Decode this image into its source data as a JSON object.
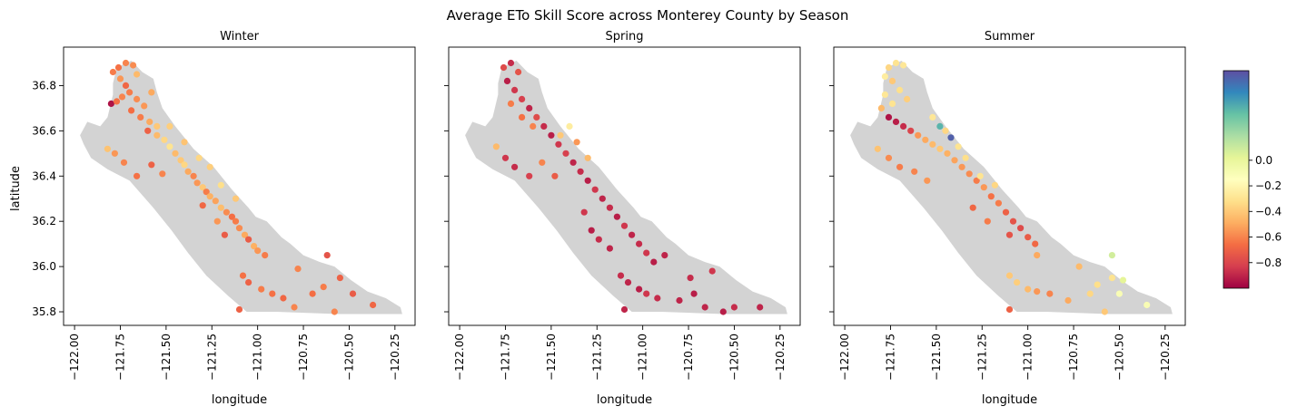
{
  "figure": {
    "title": "Average ETo Skill Score across Monterey County by Season"
  },
  "chart_data": {
    "type": "scatter",
    "xlabel": "longitude",
    "ylabel": "latitude",
    "xlim": [
      -122.06,
      -120.14
    ],
    "ylim": [
      35.74,
      36.97
    ],
    "x_ticks": [
      -122.0,
      -121.75,
      -121.5,
      -121.25,
      -121.0,
      -120.75,
      -120.5,
      -120.25
    ],
    "x_tick_labels": [
      "−122.00",
      "−121.75",
      "−121.50",
      "−121.25",
      "−121.00",
      "−120.75",
      "−120.50",
      "−120.25"
    ],
    "y_ticks": [
      35.8,
      36.0,
      36.2,
      36.4,
      36.6,
      36.8
    ],
    "y_tick_labels": [
      "35.8",
      "36.0",
      "36.2",
      "36.4",
      "36.6",
      "36.8"
    ],
    "county_fill": "#d3d3d3",
    "county_outline": [
      [
        -121.97,
        36.58
      ],
      [
        -121.93,
        36.64
      ],
      [
        -121.86,
        36.62
      ],
      [
        -121.82,
        36.66
      ],
      [
        -121.79,
        36.76
      ],
      [
        -121.79,
        36.81
      ],
      [
        -121.77,
        36.88
      ],
      [
        -121.69,
        36.91
      ],
      [
        -121.63,
        36.86
      ],
      [
        -121.57,
        36.83
      ],
      [
        -121.55,
        36.77
      ],
      [
        -121.52,
        36.7
      ],
      [
        -121.45,
        36.62
      ],
      [
        -121.35,
        36.52
      ],
      [
        -121.24,
        36.44
      ],
      [
        -121.14,
        36.34
      ],
      [
        -121.05,
        36.26
      ],
      [
        -121.01,
        36.22
      ],
      [
        -120.95,
        36.2
      ],
      [
        -120.87,
        36.13
      ],
      [
        -120.82,
        36.1
      ],
      [
        -120.75,
        36.05
      ],
      [
        -120.66,
        36.02
      ],
      [
        -120.58,
        36.0
      ],
      [
        -120.49,
        35.94
      ],
      [
        -120.4,
        35.89
      ],
      [
        -120.3,
        35.86
      ],
      [
        -120.22,
        35.82
      ],
      [
        -120.21,
        35.79
      ],
      [
        -120.56,
        35.79
      ],
      [
        -120.9,
        35.8
      ],
      [
        -121.06,
        35.8
      ],
      [
        -121.16,
        35.87
      ],
      [
        -121.28,
        35.96
      ],
      [
        -121.38,
        36.06
      ],
      [
        -121.47,
        36.16
      ],
      [
        -121.57,
        36.26
      ],
      [
        -121.7,
        36.38
      ],
      [
        -121.82,
        36.43
      ],
      [
        -121.91,
        36.48
      ],
      [
        -121.95,
        36.54
      ]
    ],
    "colorbar": {
      "colormap": "Spectral",
      "vmin": -1.0,
      "vmax": 0.7,
      "ticks": [
        0.0,
        -0.2,
        -0.4,
        -0.6,
        -0.8
      ],
      "tick_labels": [
        "0.0",
        "−0.2",
        "−0.4",
        "−0.6",
        "−0.8"
      ]
    },
    "panels": [
      {
        "title": "Winter",
        "points": [
          [
            -121.79,
            36.86,
            -0.62
          ],
          [
            -121.76,
            36.88,
            -0.65
          ],
          [
            -121.72,
            36.9,
            -0.6
          ],
          [
            -121.68,
            36.89,
            -0.58
          ],
          [
            -121.75,
            36.83,
            -0.55
          ],
          [
            -121.72,
            36.8,
            -0.68
          ],
          [
            -121.8,
            36.72,
            -0.95
          ],
          [
            -121.77,
            36.73,
            -0.65
          ],
          [
            -121.74,
            36.75,
            -0.6
          ],
          [
            -121.7,
            36.77,
            -0.62
          ],
          [
            -121.66,
            36.74,
            -0.58
          ],
          [
            -121.62,
            36.71,
            -0.55
          ],
          [
            -121.69,
            36.69,
            -0.66
          ],
          [
            -121.64,
            36.66,
            -0.62
          ],
          [
            -121.59,
            36.64,
            -0.5
          ],
          [
            -121.55,
            36.62,
            -0.4
          ],
          [
            -121.6,
            36.6,
            -0.7
          ],
          [
            -121.55,
            36.58,
            -0.45
          ],
          [
            -121.51,
            36.56,
            -0.35
          ],
          [
            -121.48,
            36.53,
            -0.3
          ],
          [
            -121.45,
            36.5,
            -0.45
          ],
          [
            -121.42,
            36.47,
            -0.4
          ],
          [
            -121.4,
            36.45,
            -0.35
          ],
          [
            -121.38,
            36.42,
            -0.5
          ],
          [
            -121.35,
            36.4,
            -0.6
          ],
          [
            -121.33,
            36.37,
            -0.55
          ],
          [
            -121.3,
            36.35,
            -0.4
          ],
          [
            -121.28,
            36.33,
            -0.62
          ],
          [
            -121.26,
            36.31,
            -0.48
          ],
          [
            -121.23,
            36.29,
            -0.52
          ],
          [
            -121.2,
            36.26,
            -0.44
          ],
          [
            -121.17,
            36.24,
            -0.58
          ],
          [
            -121.14,
            36.22,
            -0.66
          ],
          [
            -121.12,
            36.2,
            -0.62
          ],
          [
            -121.1,
            36.17,
            -0.58
          ],
          [
            -121.07,
            36.14,
            -0.5
          ],
          [
            -121.05,
            36.12,
            -0.72
          ],
          [
            -121.02,
            36.09,
            -0.48
          ],
          [
            -121.0,
            36.07,
            -0.55
          ],
          [
            -120.96,
            36.05,
            -0.62
          ],
          [
            -121.82,
            36.52,
            -0.42
          ],
          [
            -121.78,
            36.5,
            -0.55
          ],
          [
            -121.73,
            36.46,
            -0.6
          ],
          [
            -121.66,
            36.4,
            -0.65
          ],
          [
            -121.58,
            36.45,
            -0.7
          ],
          [
            -121.52,
            36.41,
            -0.6
          ],
          [
            -121.3,
            36.27,
            -0.68
          ],
          [
            -121.22,
            36.2,
            -0.55
          ],
          [
            -121.18,
            36.14,
            -0.72
          ],
          [
            -121.08,
            35.96,
            -0.65
          ],
          [
            -121.05,
            35.93,
            -0.7
          ],
          [
            -120.98,
            35.9,
            -0.62
          ],
          [
            -120.92,
            35.88,
            -0.65
          ],
          [
            -120.86,
            35.86,
            -0.68
          ],
          [
            -121.1,
            35.81,
            -0.7
          ],
          [
            -120.8,
            35.82,
            -0.6
          ],
          [
            -120.7,
            35.88,
            -0.66
          ],
          [
            -120.64,
            35.91,
            -0.62
          ],
          [
            -120.55,
            35.95,
            -0.7
          ],
          [
            -120.48,
            35.88,
            -0.72
          ],
          [
            -120.58,
            35.8,
            -0.6
          ],
          [
            -120.37,
            35.83,
            -0.68
          ],
          [
            -120.62,
            36.05,
            -0.75
          ],
          [
            -120.78,
            35.99,
            -0.6
          ],
          [
            -121.66,
            36.85,
            -0.45
          ],
          [
            -121.58,
            36.77,
            -0.5
          ],
          [
            -121.48,
            36.62,
            -0.38
          ],
          [
            -121.4,
            36.55,
            -0.42
          ],
          [
            -121.32,
            36.48,
            -0.35
          ],
          [
            -121.26,
            36.44,
            -0.38
          ],
          [
            -121.2,
            36.36,
            -0.32
          ],
          [
            -121.12,
            36.3,
            -0.4
          ]
        ]
      },
      {
        "title": "Spring",
        "points": [
          [
            -121.76,
            36.88,
            -0.78
          ],
          [
            -121.72,
            36.9,
            -0.88
          ],
          [
            -121.68,
            36.86,
            -0.75
          ],
          [
            -121.74,
            36.82,
            -0.92
          ],
          [
            -121.7,
            36.78,
            -0.85
          ],
          [
            -121.66,
            36.74,
            -0.82
          ],
          [
            -121.62,
            36.7,
            -0.9
          ],
          [
            -121.58,
            36.66,
            -0.78
          ],
          [
            -121.54,
            36.62,
            -0.88
          ],
          [
            -121.5,
            36.58,
            -0.92
          ],
          [
            -121.46,
            36.54,
            -0.85
          ],
          [
            -121.42,
            36.5,
            -0.82
          ],
          [
            -121.38,
            36.46,
            -0.9
          ],
          [
            -121.34,
            36.42,
            -0.88
          ],
          [
            -121.3,
            36.38,
            -0.92
          ],
          [
            -121.26,
            36.34,
            -0.85
          ],
          [
            -121.22,
            36.3,
            -0.9
          ],
          [
            -121.18,
            36.26,
            -0.88
          ],
          [
            -121.14,
            36.22,
            -0.92
          ],
          [
            -121.1,
            36.18,
            -0.85
          ],
          [
            -121.06,
            36.14,
            -0.9
          ],
          [
            -121.02,
            36.1,
            -0.88
          ],
          [
            -120.98,
            36.06,
            -0.85
          ],
          [
            -120.94,
            36.02,
            -0.92
          ],
          [
            -121.8,
            36.53,
            -0.45
          ],
          [
            -121.75,
            36.48,
            -0.85
          ],
          [
            -121.7,
            36.44,
            -0.88
          ],
          [
            -121.62,
            36.4,
            -0.82
          ],
          [
            -121.55,
            36.46,
            -0.6
          ],
          [
            -121.48,
            36.4,
            -0.72
          ],
          [
            -121.6,
            36.62,
            -0.6
          ],
          [
            -121.66,
            36.66,
            -0.65
          ],
          [
            -121.72,
            36.72,
            -0.62
          ],
          [
            -121.45,
            36.58,
            -0.4
          ],
          [
            -121.4,
            36.62,
            -0.25
          ],
          [
            -121.36,
            36.55,
            -0.55
          ],
          [
            -121.3,
            36.48,
            -0.45
          ],
          [
            -121.12,
            35.96,
            -0.88
          ],
          [
            -121.08,
            35.93,
            -0.9
          ],
          [
            -121.02,
            35.9,
            -0.92
          ],
          [
            -120.98,
            35.88,
            -0.85
          ],
          [
            -121.1,
            35.81,
            -0.9
          ],
          [
            -120.92,
            35.86,
            -0.88
          ],
          [
            -120.8,
            35.85,
            -0.9
          ],
          [
            -120.72,
            35.88,
            -0.92
          ],
          [
            -120.66,
            35.82,
            -0.9
          ],
          [
            -120.56,
            35.8,
            -0.92
          ],
          [
            -120.5,
            35.82,
            -0.88
          ],
          [
            -120.36,
            35.82,
            -0.9
          ],
          [
            -120.62,
            35.98,
            -0.85
          ],
          [
            -120.74,
            35.95,
            -0.88
          ],
          [
            -120.88,
            36.05,
            -0.9
          ],
          [
            -121.28,
            36.16,
            -0.92
          ],
          [
            -121.24,
            36.12,
            -0.88
          ],
          [
            -121.18,
            36.08,
            -0.9
          ],
          [
            -121.32,
            36.24,
            -0.85
          ]
        ]
      },
      {
        "title": "Summer",
        "points": [
          [
            -121.76,
            36.88,
            -0.35
          ],
          [
            -121.72,
            36.9,
            -0.3
          ],
          [
            -121.68,
            36.89,
            -0.28
          ],
          [
            -121.78,
            36.84,
            -0.25
          ],
          [
            -121.74,
            36.82,
            -0.4
          ],
          [
            -121.7,
            36.78,
            -0.32
          ],
          [
            -121.66,
            36.74,
            -0.38
          ],
          [
            -121.78,
            36.76,
            -0.28
          ],
          [
            -121.74,
            36.72,
            -0.3
          ],
          [
            -121.8,
            36.7,
            -0.45
          ],
          [
            -121.76,
            36.66,
            -0.95
          ],
          [
            -121.72,
            36.64,
            -0.92
          ],
          [
            -121.68,
            36.62,
            -0.88
          ],
          [
            -121.64,
            36.6,
            -0.8
          ],
          [
            -121.6,
            36.58,
            -0.55
          ],
          [
            -121.56,
            36.56,
            -0.5
          ],
          [
            -121.52,
            36.54,
            -0.45
          ],
          [
            -121.48,
            36.52,
            -0.4
          ],
          [
            -121.44,
            36.5,
            -0.48
          ],
          [
            -121.4,
            36.47,
            -0.52
          ],
          [
            -121.36,
            36.44,
            -0.55
          ],
          [
            -121.32,
            36.41,
            -0.58
          ],
          [
            -121.28,
            36.38,
            -0.62
          ],
          [
            -121.24,
            36.35,
            -0.55
          ],
          [
            -121.2,
            36.31,
            -0.65
          ],
          [
            -121.16,
            36.28,
            -0.62
          ],
          [
            -121.12,
            36.24,
            -0.7
          ],
          [
            -121.08,
            36.2,
            -0.75
          ],
          [
            -121.04,
            36.17,
            -0.78
          ],
          [
            -121.0,
            36.13,
            -0.72
          ],
          [
            -120.96,
            36.1,
            -0.68
          ],
          [
            -121.45,
            36.6,
            -0.35
          ],
          [
            -121.42,
            36.57,
            0.65
          ],
          [
            -121.48,
            36.62,
            0.4
          ],
          [
            -121.38,
            36.53,
            -0.3
          ],
          [
            -121.34,
            36.48,
            -0.32
          ],
          [
            -121.82,
            36.52,
            -0.42
          ],
          [
            -121.76,
            36.48,
            -0.58
          ],
          [
            -121.7,
            36.44,
            -0.62
          ],
          [
            -121.62,
            36.42,
            -0.6
          ],
          [
            -121.55,
            36.38,
            -0.55
          ],
          [
            -121.3,
            36.26,
            -0.68
          ],
          [
            -121.22,
            36.2,
            -0.62
          ],
          [
            -121.1,
            36.14,
            -0.75
          ],
          [
            -121.1,
            35.96,
            -0.4
          ],
          [
            -121.06,
            35.93,
            -0.38
          ],
          [
            -121.0,
            35.9,
            -0.45
          ],
          [
            -120.95,
            35.89,
            -0.55
          ],
          [
            -120.88,
            35.88,
            -0.6
          ],
          [
            -121.1,
            35.81,
            -0.7
          ],
          [
            -120.78,
            35.85,
            -0.5
          ],
          [
            -120.66,
            35.88,
            -0.35
          ],
          [
            -120.62,
            35.92,
            -0.32
          ],
          [
            -120.54,
            35.95,
            -0.3
          ],
          [
            -120.5,
            35.88,
            -0.1
          ],
          [
            -120.48,
            35.94,
            0.02
          ],
          [
            -120.54,
            36.05,
            0.08
          ],
          [
            -120.58,
            35.8,
            -0.4
          ],
          [
            -120.35,
            35.83,
            -0.1
          ],
          [
            -120.72,
            36.0,
            -0.45
          ],
          [
            -120.95,
            36.05,
            -0.5
          ],
          [
            -121.26,
            36.4,
            -0.3
          ],
          [
            -121.18,
            36.36,
            -0.35
          ],
          [
            -121.52,
            36.66,
            -0.28
          ]
        ]
      }
    ]
  }
}
